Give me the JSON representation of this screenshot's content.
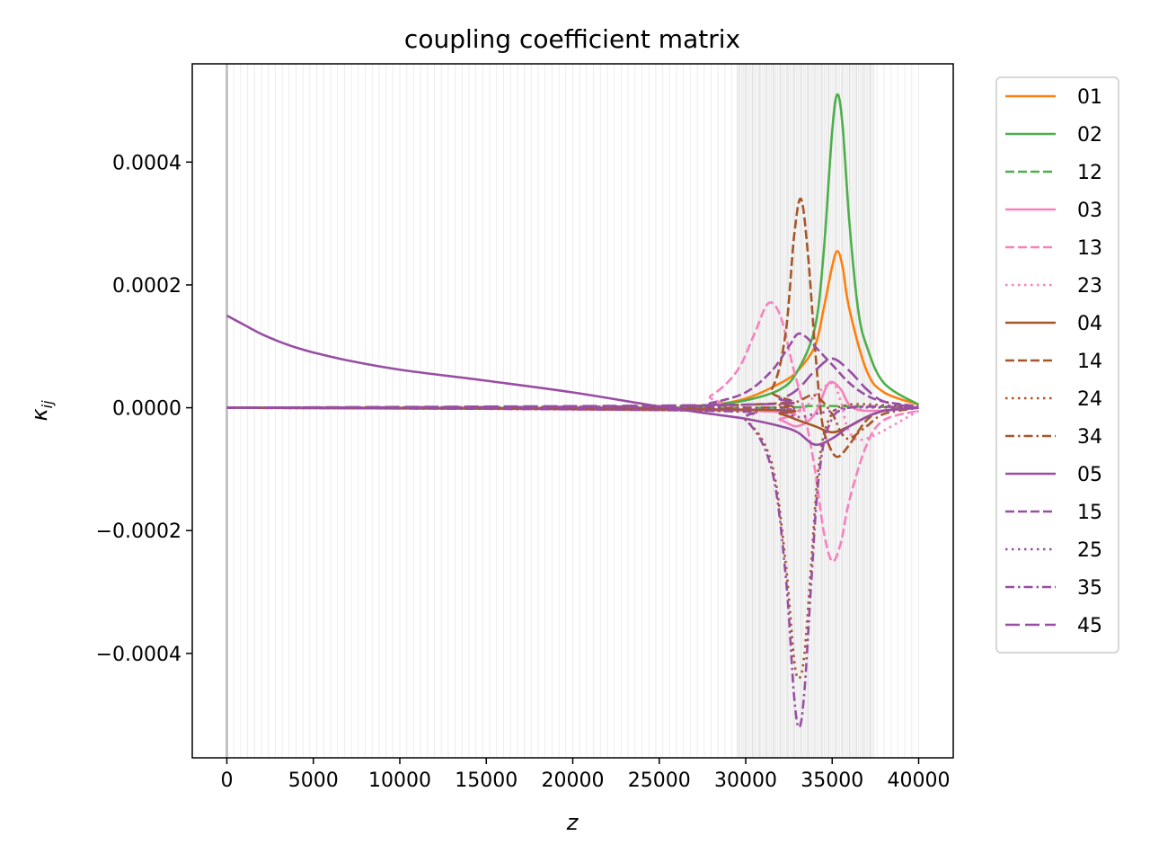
{
  "chart_data": {
    "type": "line",
    "title": "coupling coefficient matrix",
    "xlabel": "z",
    "ylabel_base": "κ",
    "ylabel_sub": "ij",
    "xlim": [
      -2000,
      42000
    ],
    "ylim": [
      -0.00057,
      0.00056
    ],
    "xticks": [
      0,
      5000,
      10000,
      15000,
      20000,
      25000,
      30000,
      35000,
      40000
    ],
    "xtick_labels": [
      "0",
      "5000",
      "10000",
      "15000",
      "20000",
      "25000",
      "30000",
      "35000",
      "40000"
    ],
    "yticks": [
      0.0004,
      0.0002,
      0.0,
      -0.0002,
      -0.0004
    ],
    "ytick_labels": [
      "0.0004",
      "0.0002",
      "0.0000",
      "−0.0002",
      "−0.0004"
    ],
    "grid": false,
    "legend_position": "outside-right-top",
    "background_bands": {
      "x_start": 0,
      "x_end": 40000,
      "dense_from": 29500,
      "dense_to": 37500
    },
    "series": [
      {
        "name": "01",
        "color": "#ff7f0e",
        "style": "solid",
        "x": [
          0,
          25000,
          28000,
          30000,
          32000,
          33000,
          34000,
          34500,
          35000,
          35300,
          35600,
          36000,
          37000,
          38000,
          40000
        ],
        "y": [
          0,
          0,
          5e-06,
          1.5e-05,
          4e-05,
          6e-05,
          0.0001,
          0.00016,
          0.00023,
          0.000255,
          0.00023,
          0.00016,
          6e-05,
          2.5e-05,
          5e-06
        ]
      },
      {
        "name": "02",
        "color": "#4daf4a",
        "style": "solid",
        "x": [
          0,
          25000,
          28000,
          30000,
          32000,
          33000,
          34000,
          34500,
          35000,
          35300,
          35600,
          36000,
          36500,
          37000,
          38000,
          40000
        ],
        "y": [
          0,
          0,
          5e-06,
          1.2e-05,
          3e-05,
          6e-05,
          0.00013,
          0.00025,
          0.00045,
          0.00051,
          0.00046,
          0.0003,
          0.00016,
          0.0001,
          4e-05,
          5e-06
        ]
      },
      {
        "name": "12",
        "color": "#4daf4a",
        "style": "dash",
        "x": [
          0,
          30000,
          34000,
          40000
        ],
        "y": [
          0,
          0,
          3e-06,
          0
        ]
      },
      {
        "name": "03",
        "color": "#f781bf",
        "style": "solid",
        "x": [
          0,
          30000,
          32000,
          33000,
          34000,
          34800,
          35500,
          36000,
          37000,
          40000
        ],
        "y": [
          0,
          -5e-06,
          -2e-05,
          -3e-05,
          -1e-05,
          4e-05,
          3e-05,
          5e-06,
          -5e-06,
          0
        ]
      },
      {
        "name": "13",
        "color": "#f781bf",
        "style": "dash",
        "x": [
          0,
          26000,
          28000,
          29500,
          30500,
          31300,
          32000,
          32700,
          33300,
          34000,
          34500,
          35000,
          35500,
          36000,
          37000,
          38000,
          40000
        ],
        "y": [
          0,
          2e-06,
          2e-05,
          6e-05,
          0.00012,
          0.00017,
          0.00015,
          7e-05,
          5e-06,
          -0.0001,
          -0.0002,
          -0.00025,
          -0.00022,
          -0.00015,
          -6e-05,
          -2e-05,
          -5e-06
        ]
      },
      {
        "name": "23",
        "color": "#f781bf",
        "style": "dot",
        "x": [
          0,
          30000,
          33000,
          34000,
          35000,
          35500,
          36000,
          37000,
          40000
        ],
        "y": [
          0,
          0,
          -5e-06,
          2e-05,
          4e-05,
          1e-05,
          -4e-05,
          -5e-05,
          -5e-06
        ]
      },
      {
        "name": "04",
        "color": "#a65628",
        "style": "solid",
        "x": [
          0,
          30000,
          32000,
          33000,
          34000,
          35000,
          36000,
          37000,
          38000,
          40000
        ],
        "y": [
          0,
          -3e-06,
          -1e-05,
          -2e-05,
          -3e-05,
          -4e-05,
          -3e-05,
          -1.5e-05,
          -5e-06,
          0
        ]
      },
      {
        "name": "14",
        "color": "#a65628",
        "style": "dash",
        "x": [
          0,
          30000,
          31500,
          32300,
          32800,
          33200,
          33600,
          34000,
          34400,
          34800,
          35300,
          36000,
          37000,
          38000,
          40000
        ],
        "y": [
          0,
          5e-06,
          3e-05,
          0.00012,
          0.00028,
          0.00034,
          0.00025,
          0.0001,
          -2e-05,
          -6e-05,
          -8e-05,
          -6e-05,
          -2e-05,
          -5e-06,
          0
        ]
      },
      {
        "name": "24",
        "color": "#a65628",
        "style": "dot",
        "x": [
          0,
          28000,
          30000,
          31500,
          32300,
          32800,
          33100,
          33400,
          33800,
          34200,
          34800,
          36000,
          40000
        ],
        "y": [
          0,
          -5e-06,
          -2e-05,
          -9e-05,
          -0.00025,
          -0.00041,
          -0.00044,
          -0.0004,
          -0.00025,
          -0.0001,
          -2e-05,
          5e-06,
          0
        ]
      },
      {
        "name": "34",
        "color": "#a65628",
        "style": "dashdot",
        "x": [
          0,
          30000,
          32000,
          33000,
          34000,
          35000,
          35500,
          36000,
          37000,
          38000,
          40000
        ],
        "y": [
          0,
          0,
          5e-06,
          1e-05,
          2e-05,
          -1e-05,
          -4e-05,
          -5e-05,
          -3e-05,
          -1e-05,
          0
        ]
      },
      {
        "name": "05",
        "color": "#984ea3",
        "style": "solid",
        "x": [
          0,
          1000,
          2000,
          3000,
          4000,
          5000,
          7000,
          10000,
          15000,
          20000,
          25000,
          28000,
          30000,
          32000,
          33000,
          34000,
          35000,
          36000,
          37000,
          38000,
          40000
        ],
        "y": [
          0.00015,
          0.000135,
          0.00012,
          0.000108,
          9.8e-05,
          9e-05,
          7.7e-05,
          6.2e-05,
          4.4e-05,
          2.5e-05,
          2e-06,
          -1e-05,
          -1.8e-05,
          -3e-05,
          -4e-05,
          -6e-05,
          -5e-05,
          -3e-05,
          -1.5e-05,
          -5e-06,
          0
        ]
      },
      {
        "name": "15",
        "color": "#984ea3",
        "style": "dash",
        "x": [
          0,
          26000,
          28000,
          30000,
          31500,
          32500,
          33000,
          33500,
          34000,
          35000,
          36000,
          37000,
          38000,
          40000
        ],
        "y": [
          0,
          2e-06,
          8e-06,
          2.5e-05,
          6e-05,
          0.0001,
          0.00012,
          0.000115,
          0.0001,
          7e-05,
          4e-05,
          2e-05,
          1e-05,
          2e-06
        ]
      },
      {
        "name": "25",
        "color": "#984ea3",
        "style": "dot",
        "x": [
          0,
          30000,
          32000,
          33000,
          34000,
          35000,
          36000,
          40000
        ],
        "y": [
          0,
          0,
          -5e-06,
          -1.5e-05,
          -1e-05,
          -5e-06,
          0,
          0
        ]
      },
      {
        "name": "35",
        "color": "#984ea3",
        "style": "dashdot",
        "x": [
          0,
          28000,
          30000,
          31500,
          32300,
          32800,
          33100,
          33400,
          33800,
          34200,
          34800,
          36000,
          40000
        ],
        "y": [
          0,
          -5e-06,
          -2e-05,
          -0.0001,
          -0.00027,
          -0.00047,
          -0.00052,
          -0.00046,
          -0.00028,
          -0.00012,
          -3e-05,
          0,
          0
        ]
      },
      {
        "name": "45",
        "color": "#984ea3",
        "style": "longdash",
        "x": [
          0,
          30000,
          32000,
          33000,
          34000,
          35000,
          36000,
          37000,
          38000,
          40000
        ],
        "y": [
          0,
          5e-06,
          1.5e-05,
          3e-05,
          6e-05,
          8e-05,
          6e-05,
          3e-05,
          1e-05,
          0
        ]
      }
    ]
  }
}
